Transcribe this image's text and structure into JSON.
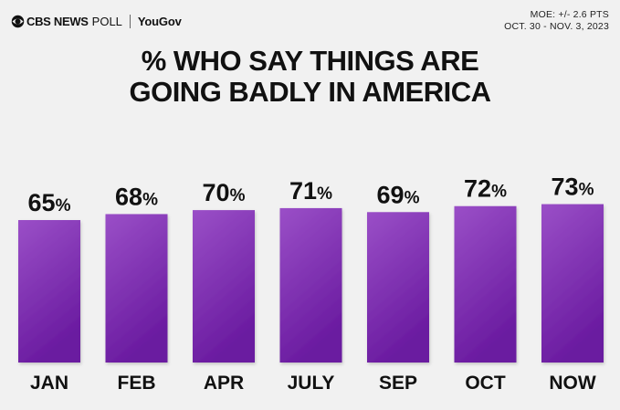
{
  "header": {
    "brand_primary": "CBS NEWS",
    "brand_secondary": "POLL",
    "brand_partner": "YouGov",
    "moe": "MOE: +/- 2.6 PTS",
    "dates": "OCT. 30 - NOV. 3, 2023"
  },
  "colors": {
    "bar_top": "#9a4fc7",
    "bar_bottom": "#6a1ba0",
    "background": "#f1f1f1",
    "text": "#111111"
  },
  "chart_data": {
    "type": "bar",
    "title_lines": [
      "% WHO SAY THINGS ARE",
      "GOING BADLY IN AMERICA"
    ],
    "categories": [
      "JAN",
      "FEB",
      "APR",
      "JULY",
      "SEP",
      "OCT",
      "NOW"
    ],
    "values": [
      65,
      68,
      70,
      71,
      69,
      72,
      73
    ],
    "value_suffix": "%",
    "xlabel": "",
    "ylabel": "",
    "ylim": [
      0,
      100
    ],
    "grid": false,
    "legend": "none"
  }
}
